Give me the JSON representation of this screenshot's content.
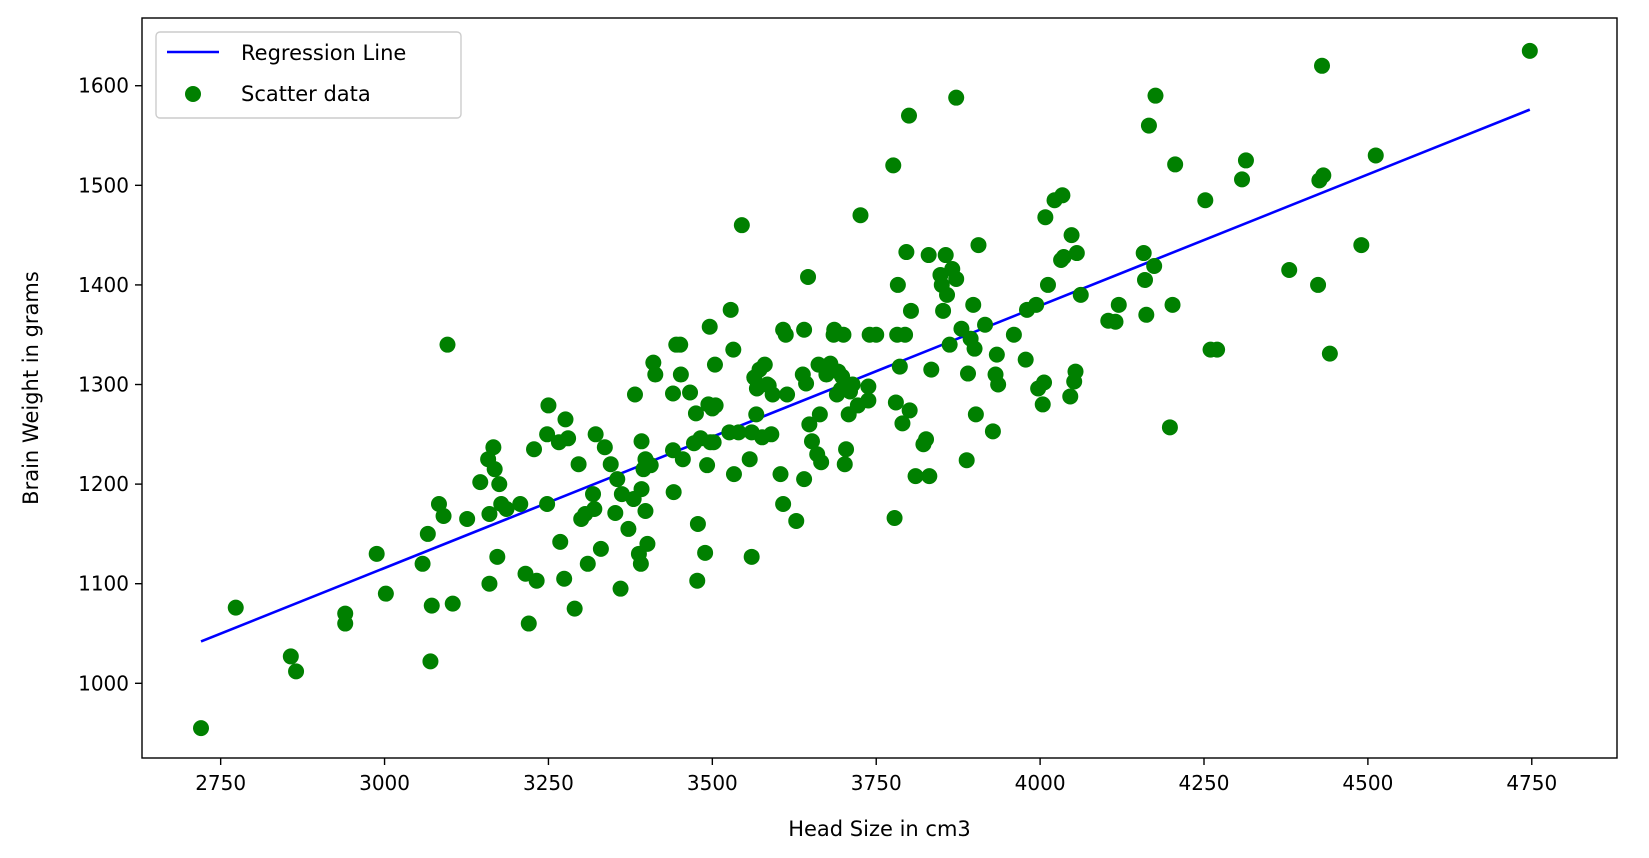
{
  "chart_data": {
    "type": "scatter",
    "xlabel": "Head Size in cm3",
    "ylabel": "Brain Weight in grams",
    "xlim": [
      2630,
      4880
    ],
    "ylim": [
      925,
      1668
    ],
    "xticks": [
      2750,
      3000,
      3250,
      3500,
      3750,
      4000,
      4250,
      4500,
      4750
    ],
    "yticks": [
      1000,
      1100,
      1200,
      1300,
      1400,
      1500,
      1600
    ],
    "grid": false,
    "legend_position": "top-left",
    "regression_line": {
      "name": "Regression Line",
      "color": "#0000ff",
      "x": [
        2720,
        4747
      ],
      "y": [
        1042,
        1576
      ]
    },
    "scatter": {
      "name": "Scatter data",
      "color": "#008000",
      "points": [
        [
          2720,
          955
        ],
        [
          2773,
          1076
        ],
        [
          2857,
          1027
        ],
        [
          2865,
          1012
        ],
        [
          2940,
          1070
        ],
        [
          2940,
          1060
        ],
        [
          2988,
          1130
        ],
        [
          3002,
          1090
        ],
        [
          3058,
          1120
        ],
        [
          3066,
          1150
        ],
        [
          3070,
          1022
        ],
        [
          3072,
          1078
        ],
        [
          3083,
          1180
        ],
        [
          3090,
          1168
        ],
        [
          3096,
          1340
        ],
        [
          3104,
          1080
        ],
        [
          3126,
          1165
        ],
        [
          3146,
          1202
        ],
        [
          3158,
          1225
        ],
        [
          3160,
          1100
        ],
        [
          3160,
          1170
        ],
        [
          3166,
          1237
        ],
        [
          3168,
          1215
        ],
        [
          3172,
          1127
        ],
        [
          3175,
          1200
        ],
        [
          3178,
          1180
        ],
        [
          3186,
          1175
        ],
        [
          3207,
          1180
        ],
        [
          3215,
          1110
        ],
        [
          3220,
          1060
        ],
        [
          3228,
          1235
        ],
        [
          3232,
          1103
        ],
        [
          3248,
          1250
        ],
        [
          3248,
          1180
        ],
        [
          3250,
          1279
        ],
        [
          3266,
          1242
        ],
        [
          3268,
          1142
        ],
        [
          3274,
          1105
        ],
        [
          3276,
          1265
        ],
        [
          3280,
          1246
        ],
        [
          3290,
          1075
        ],
        [
          3296,
          1220
        ],
        [
          3300,
          1165
        ],
        [
          3306,
          1170
        ],
        [
          3310,
          1120
        ],
        [
          3318,
          1190
        ],
        [
          3320,
          1175
        ],
        [
          3322,
          1250
        ],
        [
          3330,
          1135
        ],
        [
          3336,
          1237
        ],
        [
          3345,
          1220
        ],
        [
          3352,
          1171
        ],
        [
          3355,
          1205
        ],
        [
          3360,
          1095
        ],
        [
          3362,
          1190
        ],
        [
          3372,
          1155
        ],
        [
          3380,
          1185
        ],
        [
          3382,
          1290
        ],
        [
          3388,
          1130
        ],
        [
          3391,
          1120
        ],
        [
          3392,
          1195
        ],
        [
          3392,
          1243
        ],
        [
          3395,
          1215
        ],
        [
          3398,
          1225
        ],
        [
          3398,
          1173
        ],
        [
          3401,
          1140
        ],
        [
          3406,
          1219
        ],
        [
          3410,
          1322
        ],
        [
          3413,
          1310
        ],
        [
          3440,
          1234
        ],
        [
          3440,
          1291
        ],
        [
          3441,
          1192
        ],
        [
          3445,
          1340
        ],
        [
          3451,
          1340
        ],
        [
          3452,
          1310
        ],
        [
          3455,
          1225
        ],
        [
          3466,
          1292
        ],
        [
          3472,
          1241
        ],
        [
          3475,
          1271
        ],
        [
          3477,
          1103
        ],
        [
          3478,
          1160
        ],
        [
          3482,
          1246
        ],
        [
          3489,
          1131
        ],
        [
          3492,
          1219
        ],
        [
          3494,
          1280
        ],
        [
          3496,
          1358
        ],
        [
          3497,
          1242
        ],
        [
          3500,
          1276
        ],
        [
          3502,
          1242
        ],
        [
          3504,
          1320
        ],
        [
          3505,
          1279
        ],
        [
          3526,
          1252
        ],
        [
          3528,
          1375
        ],
        [
          3532,
          1335
        ],
        [
          3533,
          1210
        ],
        [
          3540,
          1252
        ],
        [
          3545,
          1460
        ],
        [
          3557,
          1225
        ],
        [
          3560,
          1127
        ],
        [
          3560,
          1252
        ],
        [
          3564,
          1307
        ],
        [
          3567,
          1270
        ],
        [
          3568,
          1296
        ],
        [
          3572,
          1315
        ],
        [
          3576,
          1247
        ],
        [
          3580,
          1320
        ],
        [
          3584,
          1300
        ],
        [
          3586,
          1299
        ],
        [
          3590,
          1250
        ],
        [
          3592,
          1290
        ],
        [
          3604,
          1210
        ],
        [
          3608,
          1355
        ],
        [
          3608,
          1180
        ],
        [
          3612,
          1350
        ],
        [
          3614,
          1290
        ],
        [
          3628,
          1163
        ],
        [
          3638,
          1310
        ],
        [
          3640,
          1355
        ],
        [
          3640,
          1205
        ],
        [
          3643,
          1301
        ],
        [
          3646,
          1408
        ],
        [
          3648,
          1260
        ],
        [
          3652,
          1243
        ],
        [
          3660,
          1230
        ],
        [
          3662,
          1320
        ],
        [
          3664,
          1270
        ],
        [
          3666,
          1222
        ],
        [
          3672,
          1318
        ],
        [
          3674,
          1310
        ],
        [
          3680,
          1321
        ],
        [
          3685,
          1350
        ],
        [
          3686,
          1355
        ],
        [
          3690,
          1290
        ],
        [
          3692,
          1313
        ],
        [
          3696,
          1295
        ],
        [
          3698,
          1308
        ],
        [
          3700,
          1350
        ],
        [
          3702,
          1220
        ],
        [
          3704,
          1235
        ],
        [
          3708,
          1270
        ],
        [
          3710,
          1293
        ],
        [
          3714,
          1300
        ],
        [
          3722,
          1279
        ],
        [
          3726,
          1470
        ],
        [
          3738,
          1284
        ],
        [
          3738,
          1298
        ],
        [
          3740,
          1350
        ],
        [
          3750,
          1350
        ],
        [
          3776,
          1520
        ],
        [
          3778,
          1166
        ],
        [
          3780,
          1282
        ],
        [
          3782,
          1350
        ],
        [
          3783,
          1400
        ],
        [
          3786,
          1318
        ],
        [
          3790,
          1261
        ],
        [
          3794,
          1350
        ],
        [
          3796,
          1433
        ],
        [
          3800,
          1570
        ],
        [
          3801,
          1274
        ],
        [
          3803,
          1374
        ],
        [
          3810,
          1208
        ],
        [
          3822,
          1240
        ],
        [
          3826,
          1245
        ],
        [
          3830,
          1430
        ],
        [
          3831,
          1208
        ],
        [
          3834,
          1315
        ],
        [
          3848,
          1410
        ],
        [
          3850,
          1400
        ],
        [
          3852,
          1374
        ],
        [
          3856,
          1430
        ],
        [
          3858,
          1390
        ],
        [
          3862,
          1340
        ],
        [
          3866,
          1416
        ],
        [
          3872,
          1406
        ],
        [
          3872,
          1588
        ],
        [
          3880,
          1356
        ],
        [
          3888,
          1224
        ],
        [
          3890,
          1311
        ],
        [
          3894,
          1346
        ],
        [
          3898,
          1380
        ],
        [
          3900,
          1336
        ],
        [
          3902,
          1270
        ],
        [
          3906,
          1440
        ],
        [
          3916,
          1360
        ],
        [
          3928,
          1253
        ],
        [
          3932,
          1310
        ],
        [
          3934,
          1330
        ],
        [
          3936,
          1300
        ],
        [
          3960,
          1350
        ],
        [
          3978,
          1325
        ],
        [
          3980,
          1375
        ],
        [
          3994,
          1380
        ],
        [
          3997,
          1296
        ],
        [
          4004,
          1280
        ],
        [
          4006,
          1302
        ],
        [
          4008,
          1468
        ],
        [
          4012,
          1400
        ],
        [
          4022,
          1485
        ],
        [
          4032,
          1425
        ],
        [
          4034,
          1490
        ],
        [
          4036,
          1428
        ],
        [
          4046,
          1288
        ],
        [
          4048,
          1450
        ],
        [
          4052,
          1303
        ],
        [
          4054,
          1313
        ],
        [
          4056,
          1432
        ],
        [
          4062,
          1390
        ],
        [
          4104,
          1364
        ],
        [
          4115,
          1363
        ],
        [
          4120,
          1380
        ],
        [
          4158,
          1432
        ],
        [
          4160,
          1405
        ],
        [
          4162,
          1370
        ],
        [
          4166,
          1560
        ],
        [
          4174,
          1419
        ],
        [
          4176,
          1590
        ],
        [
          4198,
          1257
        ],
        [
          4202,
          1380
        ],
        [
          4206,
          1521
        ],
        [
          4252,
          1485
        ],
        [
          4260,
          1335
        ],
        [
          4270,
          1335
        ],
        [
          4308,
          1506
        ],
        [
          4314,
          1525
        ],
        [
          4380,
          1415
        ],
        [
          4424,
          1400
        ],
        [
          4426,
          1505
        ],
        [
          4430,
          1620
        ],
        [
          4432,
          1510
        ],
        [
          4442,
          1331
        ],
        [
          4490,
          1440
        ],
        [
          4512,
          1530
        ],
        [
          4747,
          1635
        ]
      ]
    }
  }
}
